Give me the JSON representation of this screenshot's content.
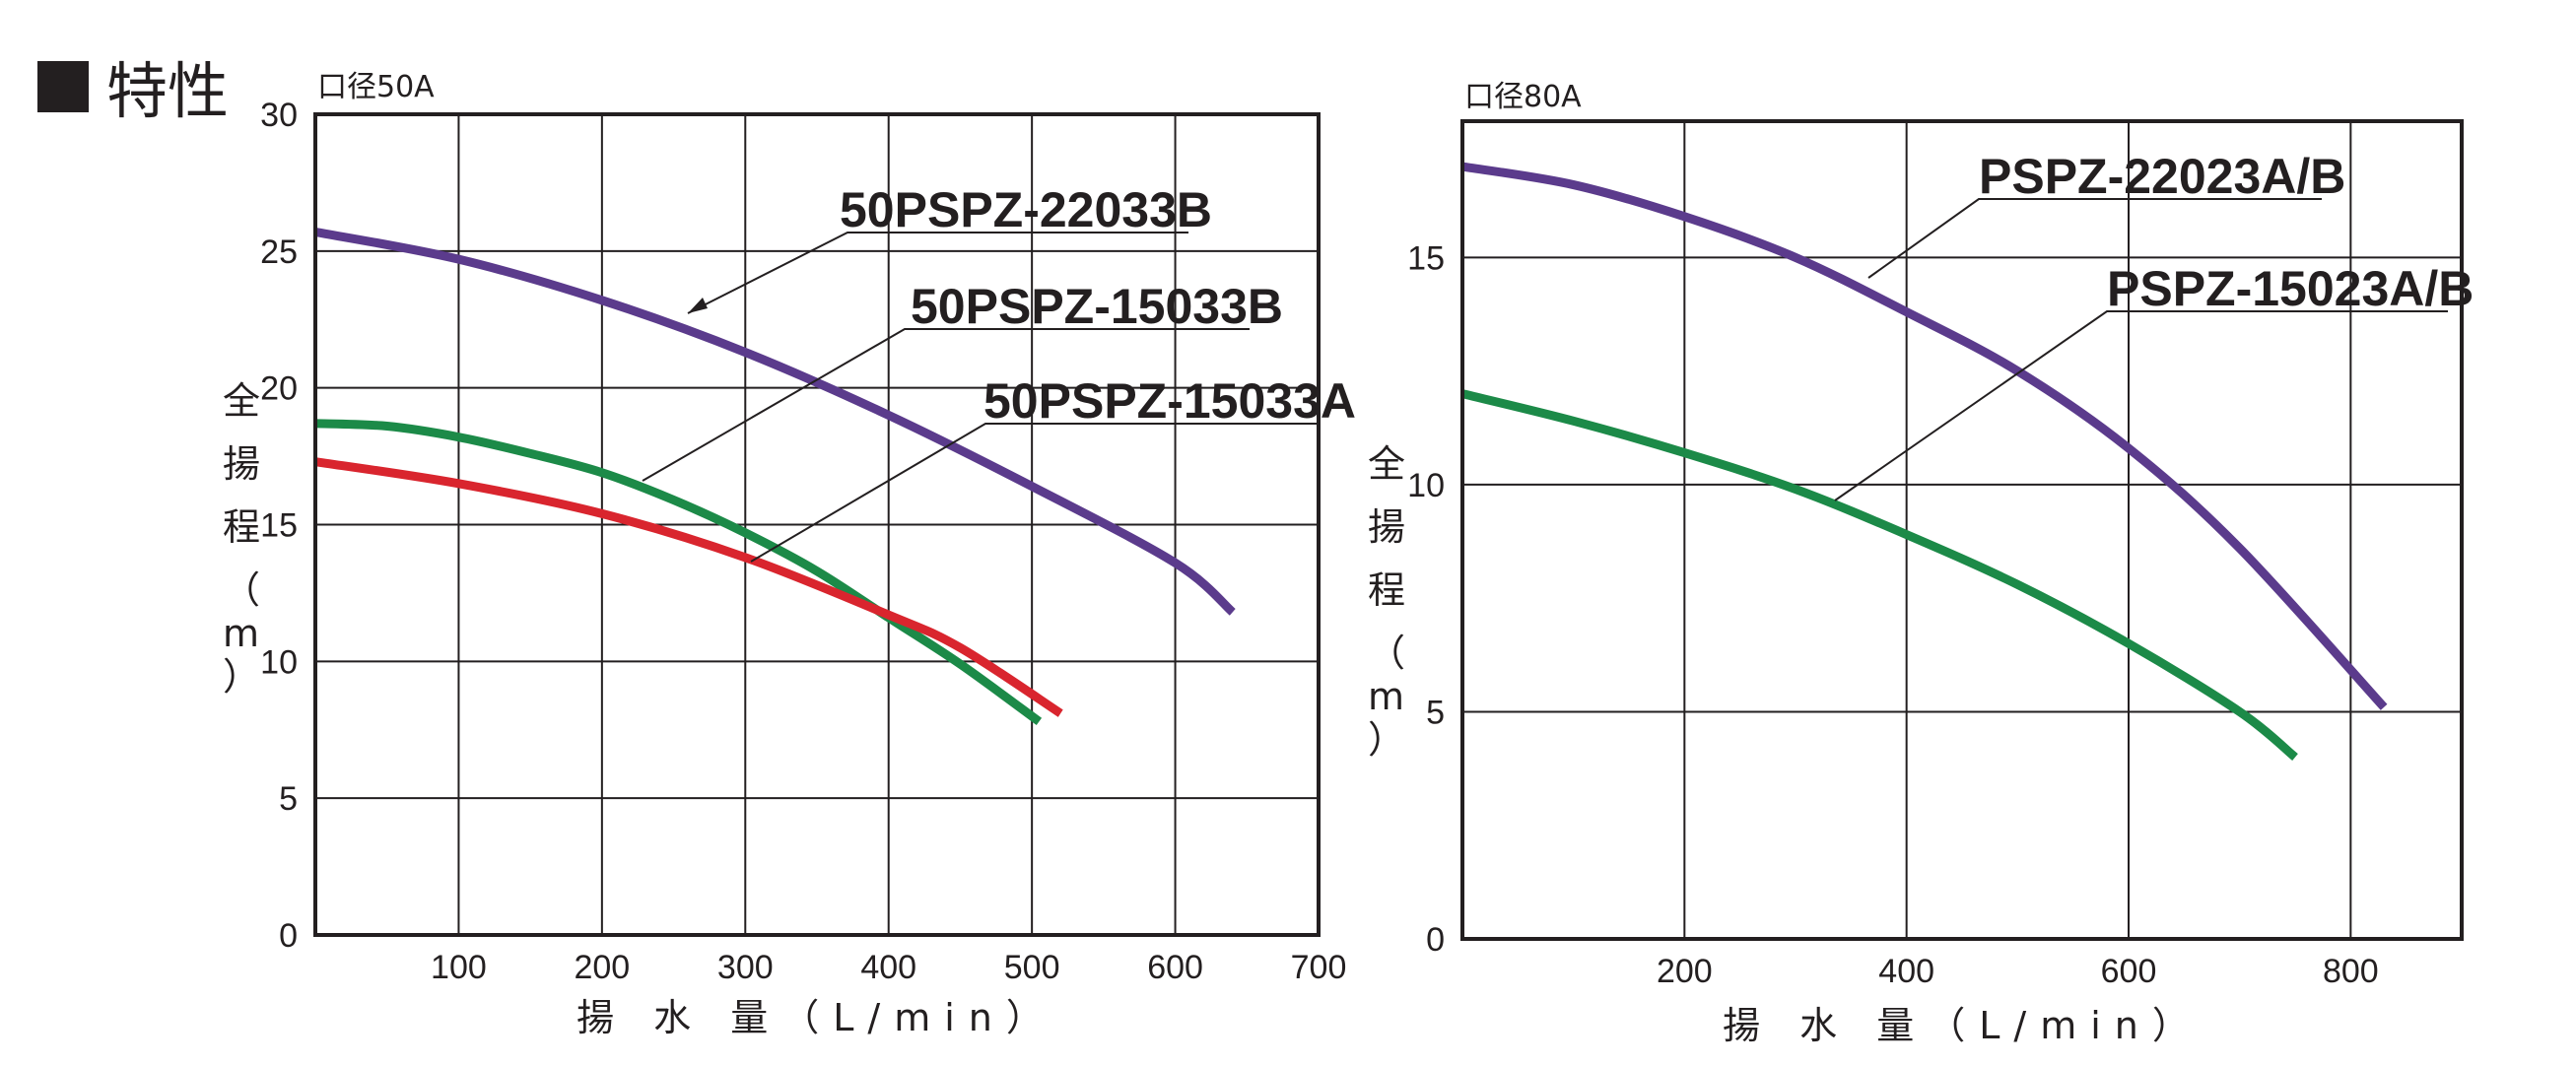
{
  "section_title": "特性",
  "colors": {
    "purple": "#5b3b8c",
    "green": "#1c8a48",
    "red": "#d9252e",
    "ink": "#231f20"
  },
  "chart_data": [
    {
      "type": "line",
      "caption": "口径50A",
      "xlabel": "揚 水 量（L/min）",
      "ylabel": "全揚程（m）",
      "xlim": [
        0,
        700
      ],
      "ylim": [
        0,
        30
      ],
      "xticks": [
        100,
        200,
        300,
        400,
        500,
        600,
        700
      ],
      "yticks": [
        0,
        5,
        10,
        15,
        20,
        25,
        30
      ],
      "grid": true,
      "series": [
        {
          "name": "50PSPZ-22033B",
          "color": "#5b3b8c",
          "x": [
            0,
            100,
            200,
            300,
            400,
            500,
            600,
            640
          ],
          "y": [
            25.7,
            24.7,
            23.2,
            21.3,
            19.0,
            16.4,
            13.6,
            11.8
          ]
        },
        {
          "name": "50PSPZ-15033B",
          "color": "#1c8a48",
          "x": [
            0,
            50,
            100,
            150,
            200,
            250,
            300,
            350,
            400,
            450,
            505
          ],
          "y": [
            18.7,
            18.6,
            18.2,
            17.6,
            16.9,
            15.9,
            14.7,
            13.3,
            11.6,
            9.9,
            7.8
          ]
        },
        {
          "name": "50PSPZ-15033A",
          "color": "#d9252e",
          "x": [
            0,
            100,
            200,
            300,
            400,
            450,
            520
          ],
          "y": [
            17.3,
            16.5,
            15.4,
            13.8,
            11.7,
            10.5,
            8.1
          ]
        }
      ]
    },
    {
      "type": "line",
      "caption": "口径80A",
      "xlabel": "揚 水 量（L/min）",
      "ylabel": "全揚程（m）",
      "xlim": [
        0,
        900
      ],
      "ylim": [
        0,
        18
      ],
      "xticks": [
        200,
        400,
        600,
        800
      ],
      "yticks": [
        0,
        5,
        10,
        15
      ],
      "grid": true,
      "series": [
        {
          "name": "PSPZ-22023A/B",
          "color": "#5b3b8c",
          "x": [
            0,
            100,
            200,
            300,
            400,
            500,
            600,
            700,
            830
          ],
          "y": [
            17.0,
            16.6,
            15.9,
            15.0,
            13.8,
            12.5,
            10.8,
            8.6,
            5.1
          ]
        },
        {
          "name": "PSPZ-15023A/B",
          "color": "#1c8a48",
          "x": [
            0,
            100,
            200,
            300,
            400,
            500,
            600,
            700,
            750
          ],
          "y": [
            12.0,
            11.4,
            10.7,
            9.9,
            8.9,
            7.8,
            6.5,
            5.0,
            4.0
          ]
        }
      ]
    }
  ]
}
